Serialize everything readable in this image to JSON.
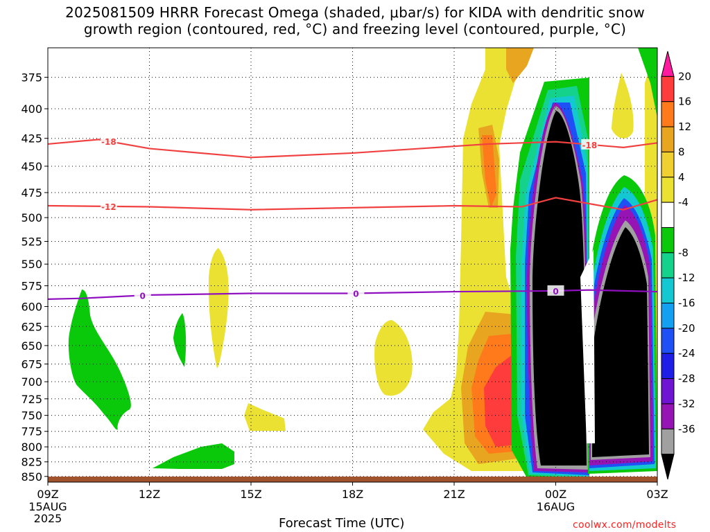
{
  "title_line1": "2025081509 HRRR Forecast Omega (shaded, μbar/s) for KIDA with dendritic snow",
  "title_line2": "growth region (contoured, red, °C) and freezing level (contoured, purple, °C)",
  "xlabel": "Forecast Time (UTC)",
  "credit": "coolwx.com/modelts",
  "chart_data": {
    "type": "heatmap",
    "variable": "Omega",
    "units": "μbar/s",
    "x_ticks": [
      {
        "hour": 9,
        "label": "09Z",
        "sub1": "15AUG",
        "sub2": "2025"
      },
      {
        "hour": 12,
        "label": "12Z",
        "sub1": "",
        "sub2": ""
      },
      {
        "hour": 15,
        "label": "15Z",
        "sub1": "",
        "sub2": ""
      },
      {
        "hour": 18,
        "label": "18Z",
        "sub1": "",
        "sub2": ""
      },
      {
        "hour": 21,
        "label": "21Z",
        "sub1": "",
        "sub2": ""
      },
      {
        "hour": 24,
        "label": "00Z",
        "sub1": "16AUG",
        "sub2": ""
      },
      {
        "hour": 27,
        "label": "03Z",
        "sub1": "",
        "sub2": ""
      }
    ],
    "xlim": [
      9,
      27
    ],
    "y_ticks": [
      375,
      400,
      425,
      450,
      475,
      500,
      525,
      550,
      575,
      600,
      625,
      650,
      675,
      700,
      725,
      750,
      775,
      800,
      825,
      850
    ],
    "ylim": [
      353,
      860
    ],
    "y_scale": "log-pressure",
    "grid": true,
    "colorbar": {
      "labels": [
        "20",
        "16",
        "12",
        "8",
        "4",
        "-4",
        "-8",
        "-12",
        "-16",
        "-20",
        "-24",
        "-28",
        "-32",
        "-36"
      ],
      "colors": [
        "#ff1aa0",
        "#ff3c3c",
        "#ff7a1a",
        "#e8a520",
        "#f0cf30",
        "#ebe133",
        "#ffffff",
        "#0ac80a",
        "#14d28c",
        "#14c8d2",
        "#14a0f0",
        "#1e50f5",
        "#1e1ee6",
        "#6e14d2",
        "#9614b4",
        "#a0a0a0",
        "#000000"
      ]
    },
    "contours": [
      {
        "label": "-18",
        "color": "#f04040",
        "points": [
          [
            9,
            430
          ],
          [
            10.5,
            426
          ],
          [
            12,
            434
          ],
          [
            15,
            442
          ],
          [
            18,
            438
          ],
          [
            20,
            434
          ],
          [
            22,
            430
          ],
          [
            24,
            428
          ],
          [
            26,
            433
          ],
          [
            27,
            429
          ]
        ]
      },
      {
        "label": "-12",
        "color": "#f04040",
        "points": [
          [
            9,
            488
          ],
          [
            12,
            489
          ],
          [
            15,
            492
          ],
          [
            18,
            490
          ],
          [
            21,
            488
          ],
          [
            23,
            489
          ],
          [
            24,
            480
          ],
          [
            25,
            486
          ],
          [
            26,
            492
          ],
          [
            27,
            482
          ]
        ]
      },
      {
        "label": "0",
        "color": "#9010c0",
        "points": [
          [
            9,
            591
          ],
          [
            10,
            590
          ],
          [
            12,
            586
          ],
          [
            15,
            584
          ],
          [
            18,
            584
          ],
          [
            21,
            582
          ],
          [
            24,
            581
          ],
          [
            25,
            580
          ],
          [
            27,
            582
          ]
        ]
      }
    ],
    "omega_regions": [
      {
        "value": -8,
        "center": [
          10.3,
          680
        ],
        "note": "ascent near surface-mid levels"
      },
      {
        "value": -8,
        "center": [
          13.5,
          828
        ]
      },
      {
        "value": -8,
        "center": [
          13.0,
          650
        ]
      },
      {
        "value": 4,
        "center": [
          14.2,
          610
        ]
      },
      {
        "value": 4,
        "center": [
          15.4,
          762
        ]
      },
      {
        "value": 4,
        "center": [
          19.4,
          688
        ]
      },
      {
        "value": 4,
        "center": [
          22.0,
          450
        ],
        "note": "descent band"
      },
      {
        "value": 16,
        "center": [
          22.8,
          715
        ]
      },
      {
        "value": -36,
        "center": [
          24.0,
          600
        ],
        "note": "strong ascent core"
      },
      {
        "value": -36,
        "center": [
          26.0,
          690
        ]
      }
    ]
  }
}
